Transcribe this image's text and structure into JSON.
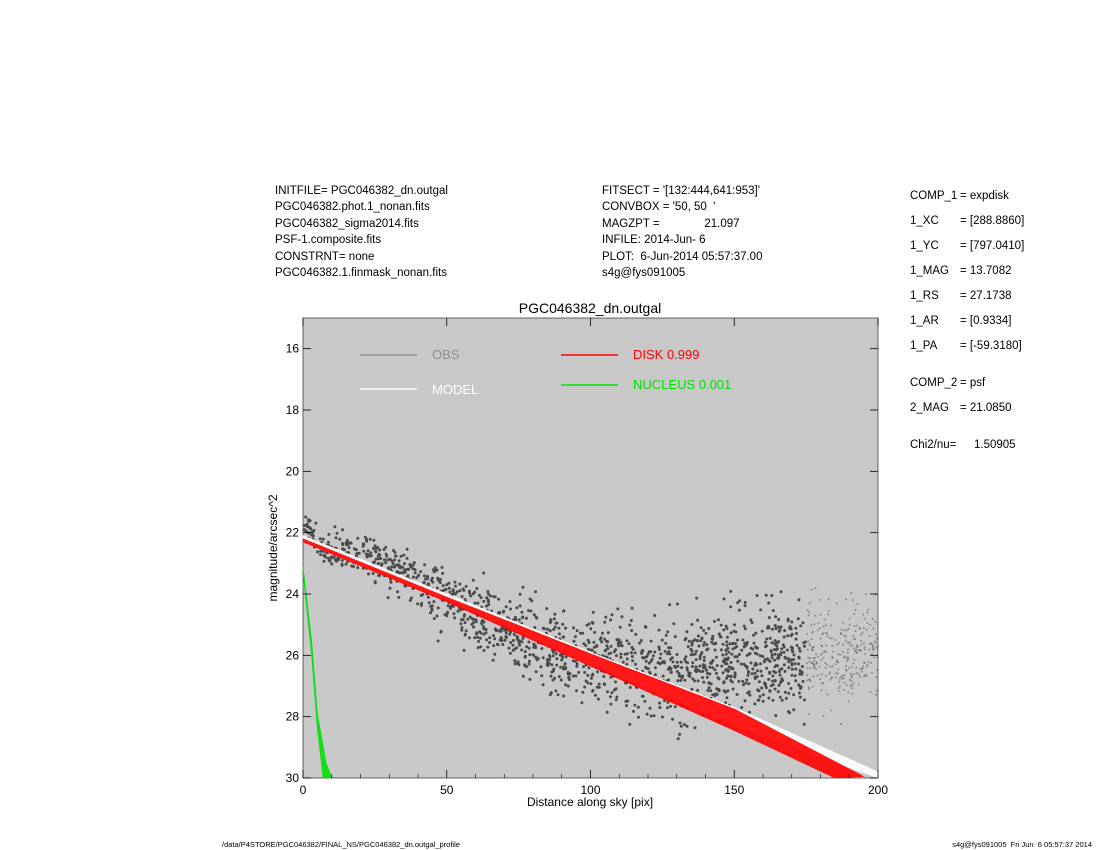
{
  "header_left": [
    "INITFILE= PGC046382_dn.outgal",
    "PGC046382.phot.1_nonan.fits",
    "PGC046382_sigma2014.fits",
    "PSF-1.composite.fits",
    "CONSTRNT= none",
    "PGC046382.1.finmask_nonan.fits"
  ],
  "header_mid": [
    "FITSECT = '[132:444,641:953]'",
    "CONVBOX = '50, 50  '",
    "MAGZPT =              21.097",
    "INFILE: 2014-Jun- 6",
    "PLOT:  6-Jun-2014 05:57:37.00",
    "s4g@fys091005"
  ],
  "side_panel": {
    "comp1": [
      {
        "key": "COMP_1",
        "value": "= expdisk"
      },
      {
        "key": "1_XC",
        "value": "= [288.8860]"
      },
      {
        "key": "1_YC",
        "value": "= [797.0410]"
      },
      {
        "key": "1_MAG",
        "value": "= 13.7082"
      },
      {
        "key": "1_RS",
        "value": "= 27.1738"
      },
      {
        "key": "1_AR",
        "value": "= [0.9334]"
      },
      {
        "key": "1_PA",
        "value": "= [-59.3180]"
      }
    ],
    "comp2": [
      {
        "key": "COMP_2",
        "value": "= psf"
      },
      {
        "key": "2_MAG",
        "value": "= 21.0850"
      }
    ],
    "chi": {
      "key": "Chi2/nu=",
      "value": "1.50905"
    }
  },
  "footer": {
    "left": "/data/P4STORE/PGC046382/FINAL_NS/PGC046382_dn.outgal_profile",
    "right": "s4g@fys091005  Fri Jun  6 05:57:37 2014"
  },
  "colors": {
    "plot_background": "#c8c8c8",
    "obs": "#4a4a4a",
    "obs_legend": "#8c8c8c",
    "model": "#ffffff",
    "disk": "#ff0000",
    "nucleus": "#00e000"
  },
  "chart_data": {
    "type": "scatter",
    "title": "PGC046382_dn.outgal",
    "xlabel": "Distance along sky [pix]",
    "ylabel": "magnitude/arcsec^2",
    "xlim": [
      0,
      200
    ],
    "ylim": [
      30,
      15
    ],
    "y_inverted": true,
    "x_ticks": [
      0,
      50,
      100,
      150,
      200
    ],
    "y_ticks": [
      16,
      18,
      20,
      22,
      24,
      26,
      28,
      30
    ],
    "grid": false,
    "legend": [
      {
        "name": "OBS",
        "color": "#8c8c8c",
        "placement": "top-left"
      },
      {
        "name": "MODEL",
        "color": "#ffffff",
        "placement": "top-left"
      },
      {
        "name": "DISK  0.999",
        "color": "#ff0000",
        "placement": "top-center"
      },
      {
        "name": "NUCLEUS  0.001",
        "color": "#00e000",
        "placement": "top-center"
      }
    ],
    "series": [
      {
        "name": "OBS",
        "kind": "scatter",
        "color": "#4a4a4a",
        "description_points": [
          [
            2,
            21.8
          ],
          [
            5,
            22.5
          ],
          [
            10,
            22.6
          ],
          [
            20,
            22.7
          ],
          [
            30,
            23.0
          ],
          [
            40,
            23.6
          ],
          [
            50,
            24.2
          ],
          [
            60,
            24.6
          ],
          [
            70,
            25.0
          ],
          [
            80,
            25.5
          ],
          [
            90,
            25.8
          ],
          [
            100,
            26.1
          ],
          [
            110,
            26.3
          ],
          [
            120,
            26.5
          ],
          [
            130,
            26.6
          ],
          [
            140,
            26.4
          ],
          [
            150,
            26.2
          ],
          [
            160,
            26.0
          ],
          [
            170,
            26.1
          ],
          [
            180,
            25.9
          ],
          [
            190,
            26.0
          ],
          [
            200,
            25.6
          ]
        ],
        "spread": [
          [
            0,
            0.3
          ],
          [
            40,
            0.8
          ],
          [
            80,
            1.2
          ],
          [
            120,
            1.4
          ],
          [
            160,
            1.5
          ],
          [
            200,
            1.4
          ]
        ]
      },
      {
        "name": "MODEL",
        "kind": "band",
        "color": "#ffffff",
        "upper": [
          [
            0,
            22.1
          ],
          [
            50,
            24.0
          ],
          [
            100,
            25.9
          ],
          [
            150,
            27.7
          ],
          [
            200,
            29.8
          ]
        ],
        "lower": [
          [
            0,
            22.3
          ],
          [
            50,
            24.2
          ],
          [
            100,
            26.3
          ],
          [
            150,
            28.3
          ],
          [
            200,
            30.4
          ]
        ]
      },
      {
        "name": "DISK  0.999",
        "kind": "band",
        "color": "#ff0000",
        "upper": [
          [
            0,
            22.2
          ],
          [
            50,
            24.1
          ],
          [
            100,
            25.95
          ],
          [
            150,
            27.75
          ],
          [
            195,
            29.95
          ]
        ],
        "lower": [
          [
            0,
            22.3
          ],
          [
            50,
            24.25
          ],
          [
            100,
            26.35
          ],
          [
            150,
            28.45
          ],
          [
            185,
            30.0
          ]
        ]
      },
      {
        "name": "NUCLEUS  0.001",
        "kind": "band",
        "color": "#00e000",
        "upper": [
          [
            0,
            23.1
          ],
          [
            3,
            25.5
          ],
          [
            5,
            27.9
          ],
          [
            8,
            29.5
          ],
          [
            10,
            30.0
          ]
        ],
        "lower": [
          [
            0,
            23.3
          ],
          [
            3,
            26.0
          ],
          [
            5,
            28.4
          ],
          [
            7,
            30.0
          ]
        ]
      }
    ]
  }
}
